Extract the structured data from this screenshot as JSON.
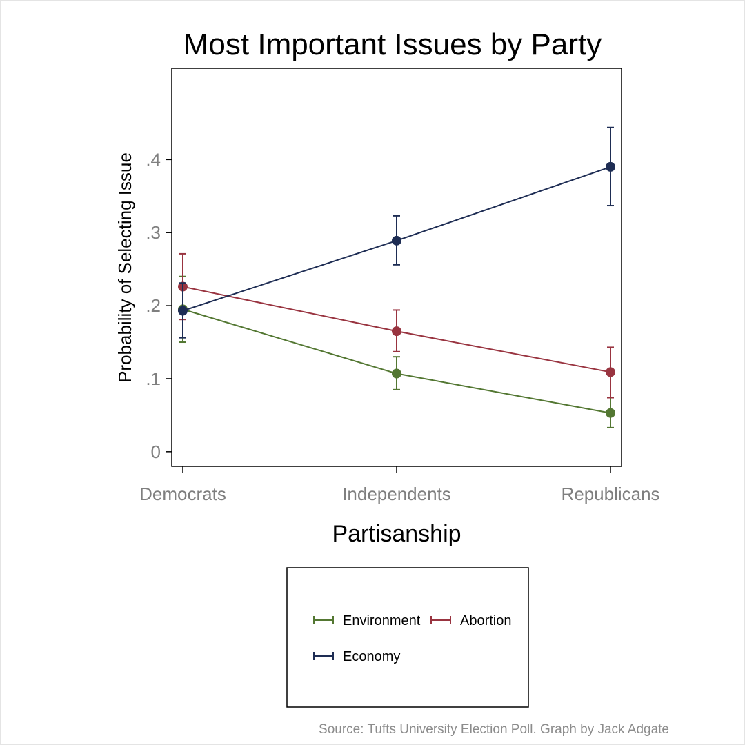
{
  "chart_data": {
    "type": "line",
    "title": "Most Important Issues by Party",
    "xlabel": "Partisanship",
    "ylabel": "Probability of Selecting Issue",
    "categories": [
      "Democrats",
      "Independents",
      "Republicans"
    ],
    "ylim": [
      -0.02,
      0.525
    ],
    "yticks": [
      0,
      0.1,
      0.2,
      0.3,
      0.4
    ],
    "ytick_labels": [
      "0",
      ".1",
      ".2",
      ".3",
      ".4"
    ],
    "grid": true,
    "legend_position": "bottom",
    "series": [
      {
        "name": "Environment",
        "color": "#537732",
        "values": [
          0.195,
          0.107,
          0.053
        ],
        "ci_low": [
          0.15,
          0.085,
          0.033
        ],
        "ci_high": [
          0.24,
          0.13,
          0.074
        ]
      },
      {
        "name": "Abortion",
        "color": "#993440",
        "values": [
          0.226,
          0.165,
          0.109
        ],
        "ci_low": [
          0.181,
          0.137,
          0.074
        ],
        "ci_high": [
          0.271,
          0.194,
          0.143
        ]
      },
      {
        "name": "Economy",
        "color": "#1e2d54",
        "values": [
          0.193,
          0.289,
          0.39
        ],
        "ci_low": [
          0.156,
          0.256,
          0.337
        ],
        "ci_high": [
          0.231,
          0.323,
          0.444
        ]
      }
    ],
    "note": "Source: Tufts University Election Poll. Graph by Jack Adgate"
  }
}
